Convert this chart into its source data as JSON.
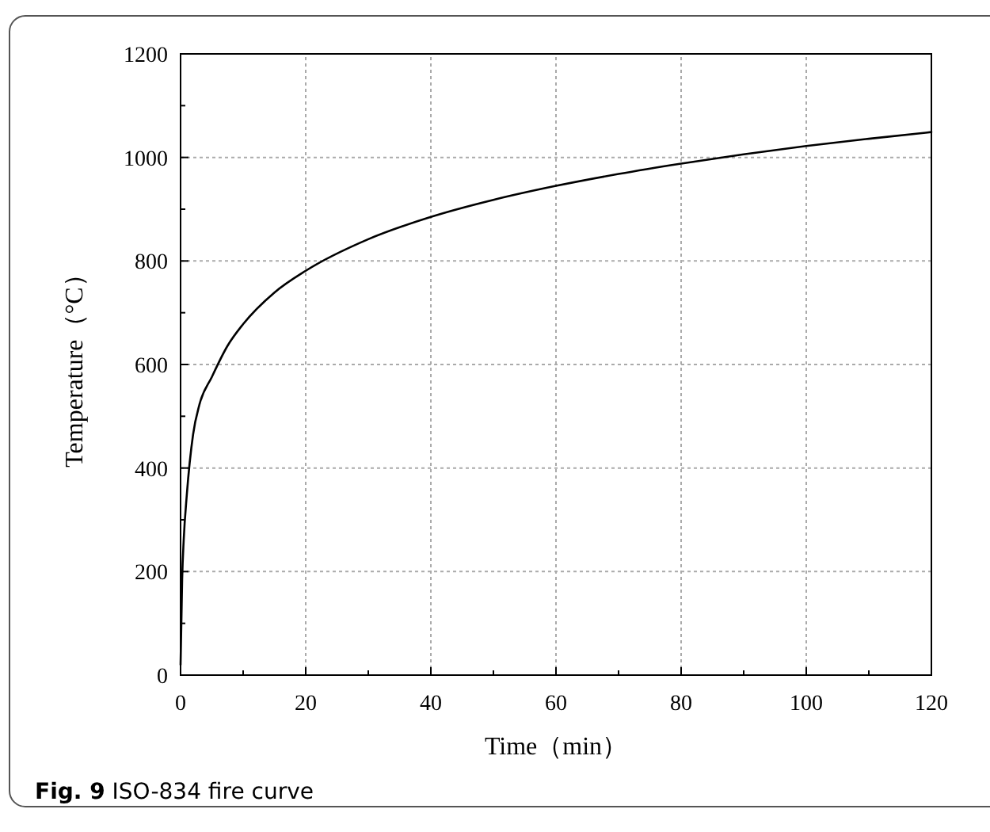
{
  "chart_data": {
    "type": "line",
    "xlabel": "Time（min）",
    "ylabel": "Temperature（°C）",
    "annotations": [
      "Fig. 9 ISO-834 fire curve"
    ],
    "series": [
      {
        "color": "#000000",
        "x": [
          0,
          0.25,
          0.5,
          1,
          2,
          3,
          5,
          7.5,
          10,
          15,
          20,
          30,
          40,
          50,
          60,
          70,
          80,
          90,
          100,
          110,
          120
        ],
        "values": [
          20,
          185,
          261,
          349,
          465,
          522,
          576,
          636,
          678,
          739,
          781,
          842,
          885,
          918,
          945,
          968,
          988,
          1006,
          1022,
          1036,
          1049
        ]
      }
    ],
    "xlim": [
      0,
      120
    ],
    "ylim": [
      0,
      1200
    ],
    "xticks": [
      0,
      {
        "value": 10,
        "label": null
      },
      20,
      {
        "value": 30,
        "label": null
      },
      40,
      {
        "value": 50,
        "label": null
      },
      60,
      {
        "value": 70,
        "label": null
      },
      80,
      {
        "value": 90,
        "label": null
      },
      100,
      {
        "value": 110,
        "label": null
      },
      120
    ],
    "yticks": [
      0,
      {
        "value": 100,
        "label": null
      },
      200,
      {
        "value": 300,
        "label": null
      },
      400,
      {
        "value": 500,
        "label": null
      },
      600,
      {
        "value": 700,
        "label": null
      },
      800,
      {
        "value": 900,
        "label": null
      },
      1000,
      {
        "value": 1100,
        "label": null
      },
      1200
    ],
    "grid": true,
    "marker": "none",
    "line_style": "solid"
  }
}
